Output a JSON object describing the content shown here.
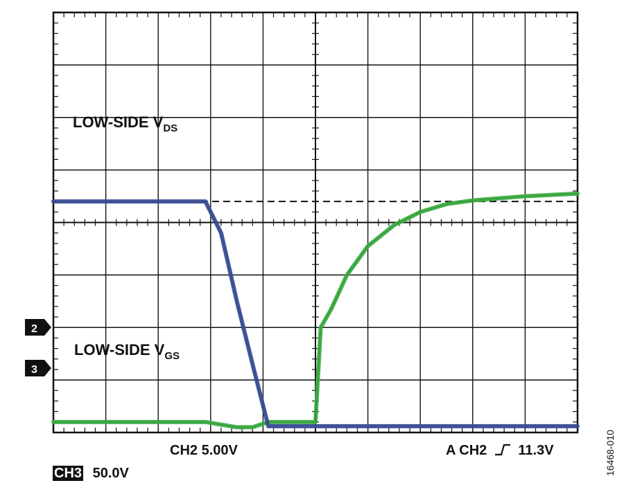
{
  "chart_data": {
    "type": "line",
    "title": "",
    "grid": true,
    "x": [
      0,
      2.9,
      3.2,
      3.5,
      3.8,
      4.1,
      4.6,
      5.0,
      5.1,
      5.3,
      5.6,
      6.0,
      6.5,
      7.0,
      7.5,
      8.0,
      9.0,
      10.0
    ],
    "series": [
      {
        "name": "LOW-SIDE V",
        "sub": "DS",
        "color": "#3a4d9c",
        "values": [
          4.4,
          4.4,
          3.8,
          2.5,
          1.3,
          0.12,
          0.12,
          0.12,
          0.12,
          0.12,
          0.12,
          0.12,
          0.12,
          0.12,
          0.12,
          0.12,
          0.12,
          0.12
        ]
      },
      {
        "name": "LOW-SIDE V",
        "sub": "GS",
        "color": "#3cb043",
        "values": [
          0.2,
          0.2,
          0.15,
          0.1,
          0.1,
          0.2,
          0.2,
          0.2,
          2.0,
          2.35,
          3.0,
          3.55,
          3.95,
          4.2,
          4.35,
          4.42,
          4.5,
          4.55
        ]
      }
    ],
    "ref_line": 4.4,
    "markers": [
      "2",
      "3"
    ],
    "readouts": {
      "ch2": "CH2 5.00V",
      "trigger_prefix": "A  CH2",
      "trigger_value": "11.3V",
      "ch3_label": "CH3",
      "ch3_scale": "50.0V"
    },
    "figure_id": "16468-010"
  }
}
